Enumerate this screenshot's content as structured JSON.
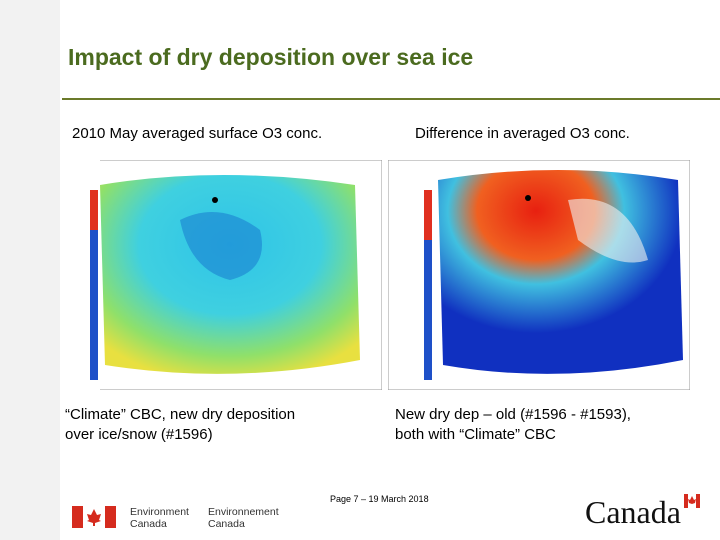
{
  "header": {
    "title": "Impact of dry deposition over sea ice"
  },
  "panels": [
    {
      "heading": "2010 May averaged surface O3 conc.",
      "caption": [
        "“Climate” CBC, new dry deposition",
        "over ice/snow (#1596)"
      ]
    },
    {
      "heading": "Difference in averaged O3 conc.",
      "caption": [
        "New dry dep – old (#1596 - #1593),",
        "both with “Climate” CBC"
      ]
    }
  ],
  "footer": {
    "department": [
      "Environment",
      "Canada"
    ],
    "department_fr": [
      "Environnement",
      "Canada"
    ],
    "page": "Page 7 – 19 March 2018",
    "wordmark": "Canada"
  }
}
